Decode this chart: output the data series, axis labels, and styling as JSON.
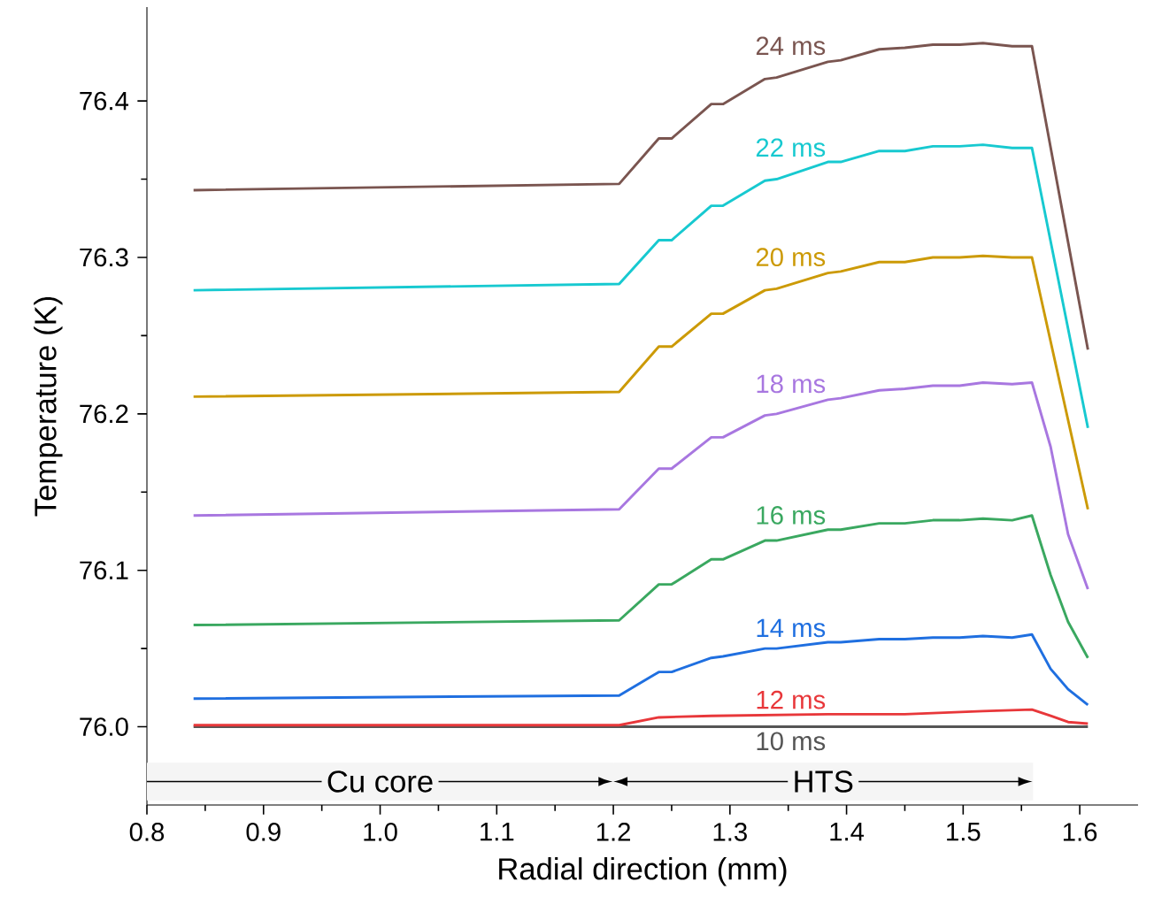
{
  "chart_data": {
    "type": "line",
    "xlabel": "Radial direction (mm)",
    "ylabel": "Temperature (K)",
    "xlim": [
      0.8,
      1.65
    ],
    "ylim": [
      75.95,
      76.46
    ],
    "xticks": [
      0.8,
      0.9,
      {
        "value": 1.0,
        "label": "1.0"
      },
      1.1,
      1.2,
      1.3,
      1.4,
      1.5,
      1.6
    ],
    "yticks": [
      {
        "value": 76.0,
        "label": "76.0"
      },
      76.1,
      76.2,
      76.3,
      76.4
    ],
    "grid": false,
    "legend": false,
    "line_style": "solid",
    "marker": "none",
    "x": [
      0.84,
      1.205,
      1.239,
      1.25,
      1.284,
      1.294,
      1.33,
      1.34,
      1.384,
      1.395,
      1.428,
      1.45,
      1.474,
      1.497,
      1.517,
      1.542,
      1.559,
      1.607
    ],
    "series": [
      {
        "name": "10 ms",
        "color": "#555555",
        "x": [
          0.84,
          1.205,
          1.559,
          1.607
        ],
        "values": [
          76.0,
          76.0,
          76.0,
          76.0
        ]
      },
      {
        "name": "12 ms",
        "color": "#e8373a",
        "x": [
          0.84,
          1.205,
          1.239,
          1.284,
          1.384,
          1.45,
          1.517,
          1.559,
          1.575,
          1.59,
          1.607
        ],
        "values": [
          76.001,
          76.001,
          76.006,
          76.007,
          76.008,
          76.008,
          76.01,
          76.011,
          76.007,
          76.003,
          76.002
        ]
      },
      {
        "name": "14 ms",
        "color": "#1f6fe0",
        "x": [
          0.84,
          1.205,
          1.239,
          1.25,
          1.284,
          1.294,
          1.33,
          1.34,
          1.384,
          1.395,
          1.428,
          1.45,
          1.474,
          1.497,
          1.517,
          1.542,
          1.559,
          1.575,
          1.59,
          1.607
        ],
        "values": [
          76.018,
          76.02,
          76.035,
          76.035,
          76.044,
          76.045,
          76.05,
          76.05,
          76.054,
          76.054,
          76.056,
          76.056,
          76.057,
          76.057,
          76.058,
          76.057,
          76.059,
          76.037,
          76.024,
          76.014
        ]
      },
      {
        "name": "16 ms",
        "color": "#3aa860",
        "x": [
          0.84,
          1.205,
          1.239,
          1.25,
          1.284,
          1.294,
          1.33,
          1.34,
          1.384,
          1.395,
          1.428,
          1.45,
          1.474,
          1.497,
          1.517,
          1.542,
          1.559,
          1.575,
          1.59,
          1.607
        ],
        "values": [
          76.065,
          76.068,
          76.091,
          76.091,
          76.107,
          76.107,
          76.119,
          76.119,
          76.126,
          76.126,
          76.13,
          76.13,
          76.132,
          76.132,
          76.133,
          76.132,
          76.135,
          76.097,
          76.067,
          76.044
        ]
      },
      {
        "name": "18 ms",
        "color": "#a877e0",
        "x": [
          0.84,
          1.205,
          1.239,
          1.25,
          1.284,
          1.294,
          1.33,
          1.34,
          1.384,
          1.395,
          1.428,
          1.45,
          1.474,
          1.497,
          1.517,
          1.542,
          1.559,
          1.575,
          1.59,
          1.607
        ],
        "values": [
          76.135,
          76.139,
          76.165,
          76.165,
          76.185,
          76.185,
          76.199,
          76.2,
          76.209,
          76.21,
          76.215,
          76.216,
          76.218,
          76.218,
          76.22,
          76.219,
          76.22,
          76.179,
          76.123,
          76.088
        ]
      },
      {
        "name": "20 ms",
        "color": "#cc9a06",
        "values": [
          76.211,
          76.214,
          76.243,
          76.243,
          76.264,
          76.264,
          76.279,
          76.28,
          76.29,
          76.291,
          76.297,
          76.297,
          76.3,
          76.3,
          76.301,
          76.3,
          76.3,
          76.139
        ]
      },
      {
        "name": "22 ms",
        "color": "#17c9d0",
        "values": [
          76.279,
          76.283,
          76.311,
          76.311,
          76.333,
          76.333,
          76.349,
          76.35,
          76.361,
          76.361,
          76.368,
          76.368,
          76.371,
          76.371,
          76.372,
          76.37,
          76.37,
          76.191
        ]
      },
      {
        "name": "24 ms",
        "color": "#7a5550",
        "values": [
          76.343,
          76.347,
          76.376,
          76.376,
          76.398,
          76.398,
          76.414,
          76.415,
          76.425,
          76.426,
          76.433,
          76.434,
          76.436,
          76.436,
          76.437,
          76.435,
          76.435,
          76.241
        ]
      }
    ],
    "bands": [
      {
        "axis": "x",
        "from": 0.8,
        "to": 1.2,
        "label": "Cu core"
      },
      {
        "axis": "x",
        "from": 1.2,
        "to": 1.56,
        "label": "HTS"
      }
    ]
  }
}
